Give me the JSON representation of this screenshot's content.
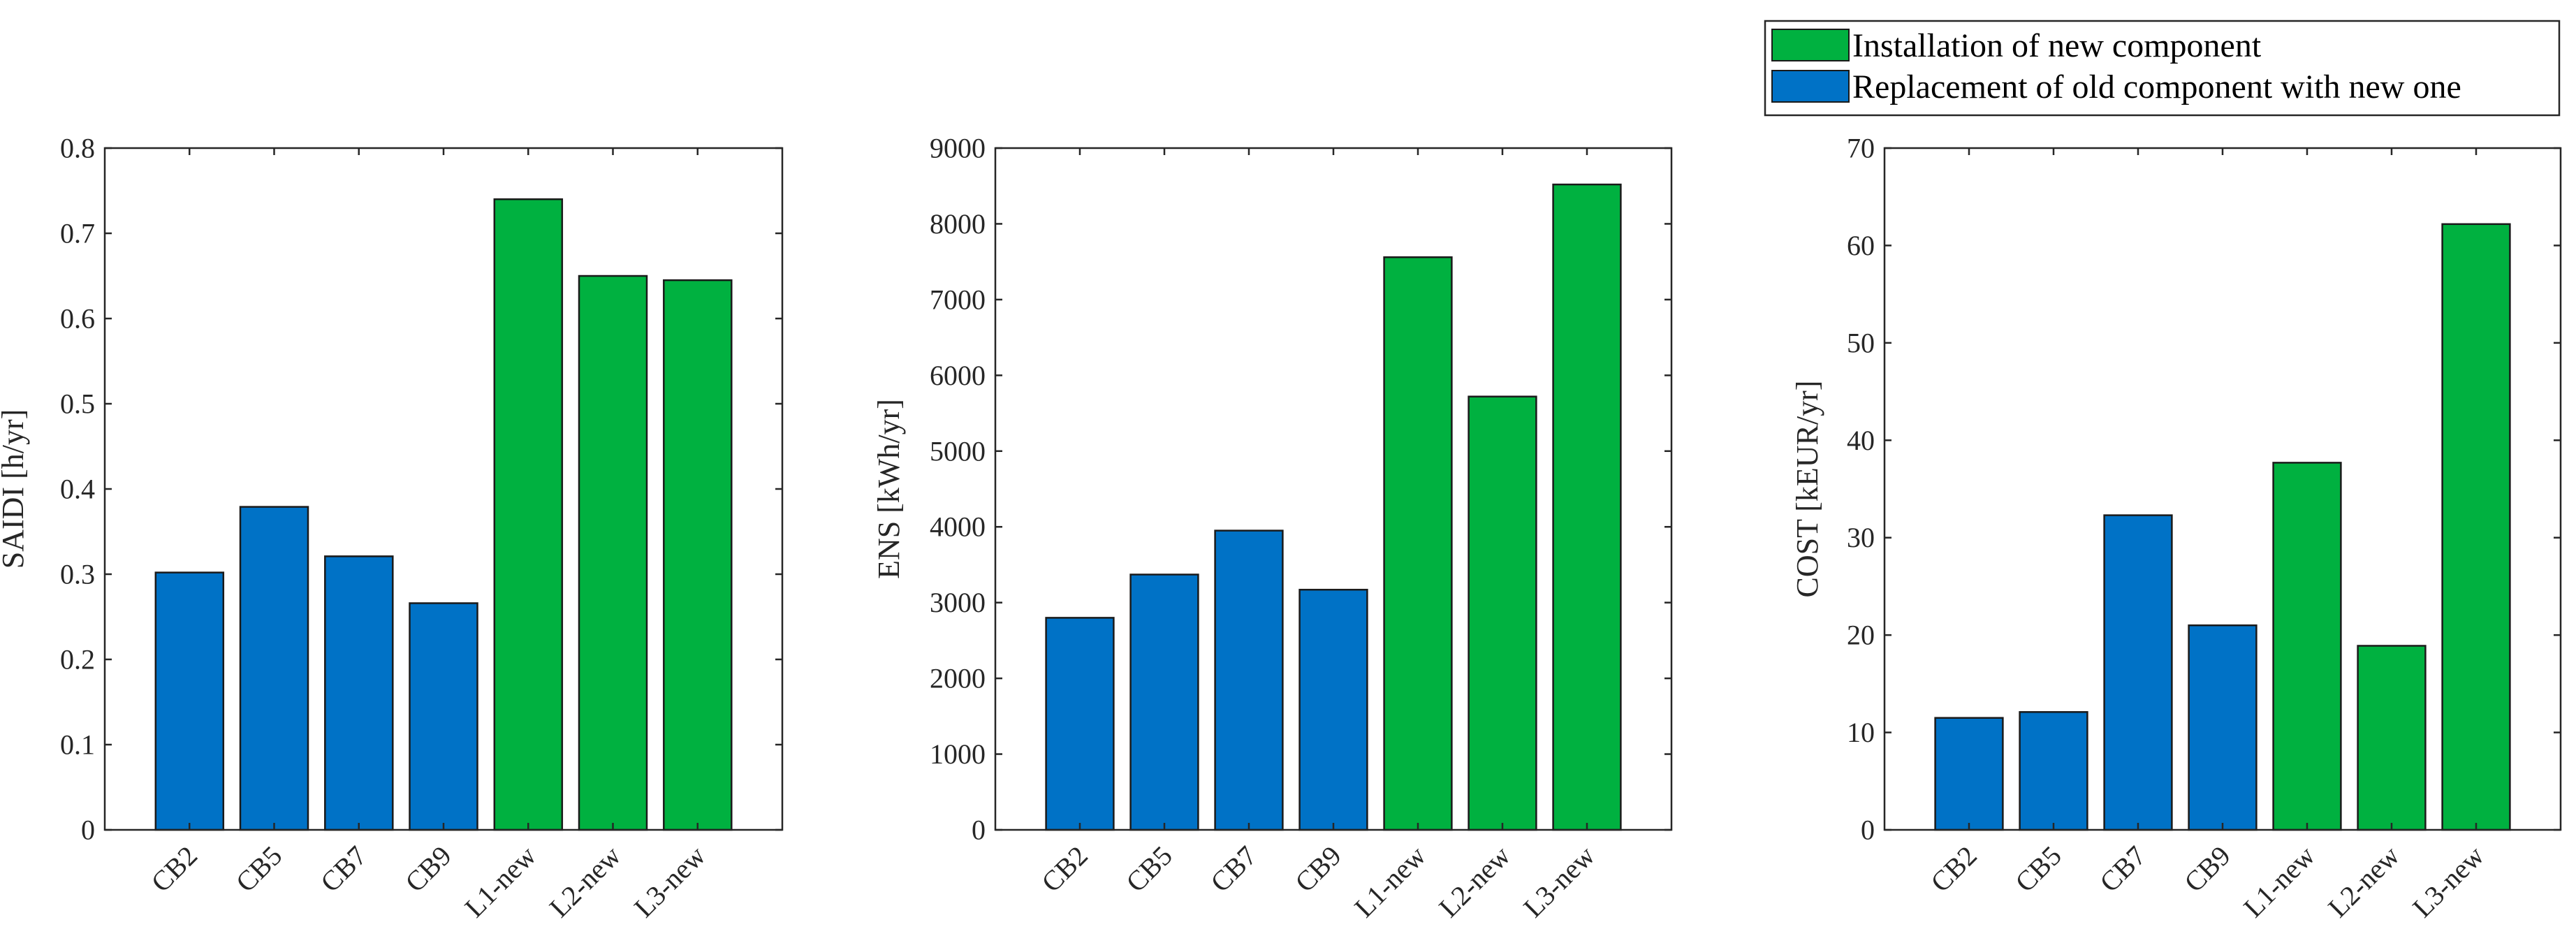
{
  "legend": {
    "entries": [
      {
        "label": "Installation of new component",
        "color": "#00b140"
      },
      {
        "label": "Replacement of old component with new one",
        "color": "#0072c6"
      }
    ]
  },
  "chart_data": [
    {
      "type": "bar",
      "categories": [
        "CB2",
        "CB5",
        "CB7",
        "CB9",
        "L1-new",
        "L2-new",
        "L3-new"
      ],
      "values": [
        0.302,
        0.379,
        0.321,
        0.266,
        0.74,
        0.65,
        0.645
      ],
      "bar_groups": [
        "replacement",
        "replacement",
        "replacement",
        "replacement",
        "installation",
        "installation",
        "installation"
      ],
      "ylabel": "SAIDI [h/yr]",
      "ylim": [
        0,
        0.8
      ],
      "yticks": [
        "0",
        "0.1",
        "0.2",
        "0.3",
        "0.4",
        "0.5",
        "0.6",
        "0.7",
        "0.8"
      ],
      "ytick_values": [
        0,
        0.1,
        0.2,
        0.3,
        0.4,
        0.5,
        0.6,
        0.7,
        0.8
      ],
      "grid": false
    },
    {
      "type": "bar",
      "categories": [
        "CB2",
        "CB5",
        "CB7",
        "CB9",
        "L1-new",
        "L2-new",
        "L3-new"
      ],
      "values": [
        2800,
        3370,
        3950,
        3170,
        7560,
        5720,
        8520
      ],
      "bar_groups": [
        "replacement",
        "replacement",
        "replacement",
        "replacement",
        "installation",
        "installation",
        "installation"
      ],
      "ylabel": "ENS [kWh/yr]",
      "ylim": [
        0,
        9000
      ],
      "yticks": [
        "0",
        "1000",
        "2000",
        "3000",
        "4000",
        "5000",
        "6000",
        "7000",
        "8000",
        "9000"
      ],
      "ytick_values": [
        0,
        1000,
        2000,
        3000,
        4000,
        5000,
        6000,
        7000,
        8000,
        9000
      ],
      "grid": false
    },
    {
      "type": "bar",
      "categories": [
        "CB2",
        "CB5",
        "CB7",
        "CB9",
        "L1-new",
        "L2-new",
        "L3-new"
      ],
      "values": [
        11.5,
        12.1,
        32.3,
        21.0,
        37.7,
        18.9,
        62.2
      ],
      "bar_groups": [
        "replacement",
        "replacement",
        "replacement",
        "replacement",
        "installation",
        "installation",
        "installation"
      ],
      "ylabel": "COST [kEUR/yr]",
      "ylim": [
        0,
        70
      ],
      "yticks": [
        "0",
        "10",
        "20",
        "30",
        "40",
        "50",
        "60",
        "70"
      ],
      "ytick_values": [
        0,
        10,
        20,
        30,
        40,
        50,
        60,
        70
      ],
      "grid": false
    }
  ]
}
